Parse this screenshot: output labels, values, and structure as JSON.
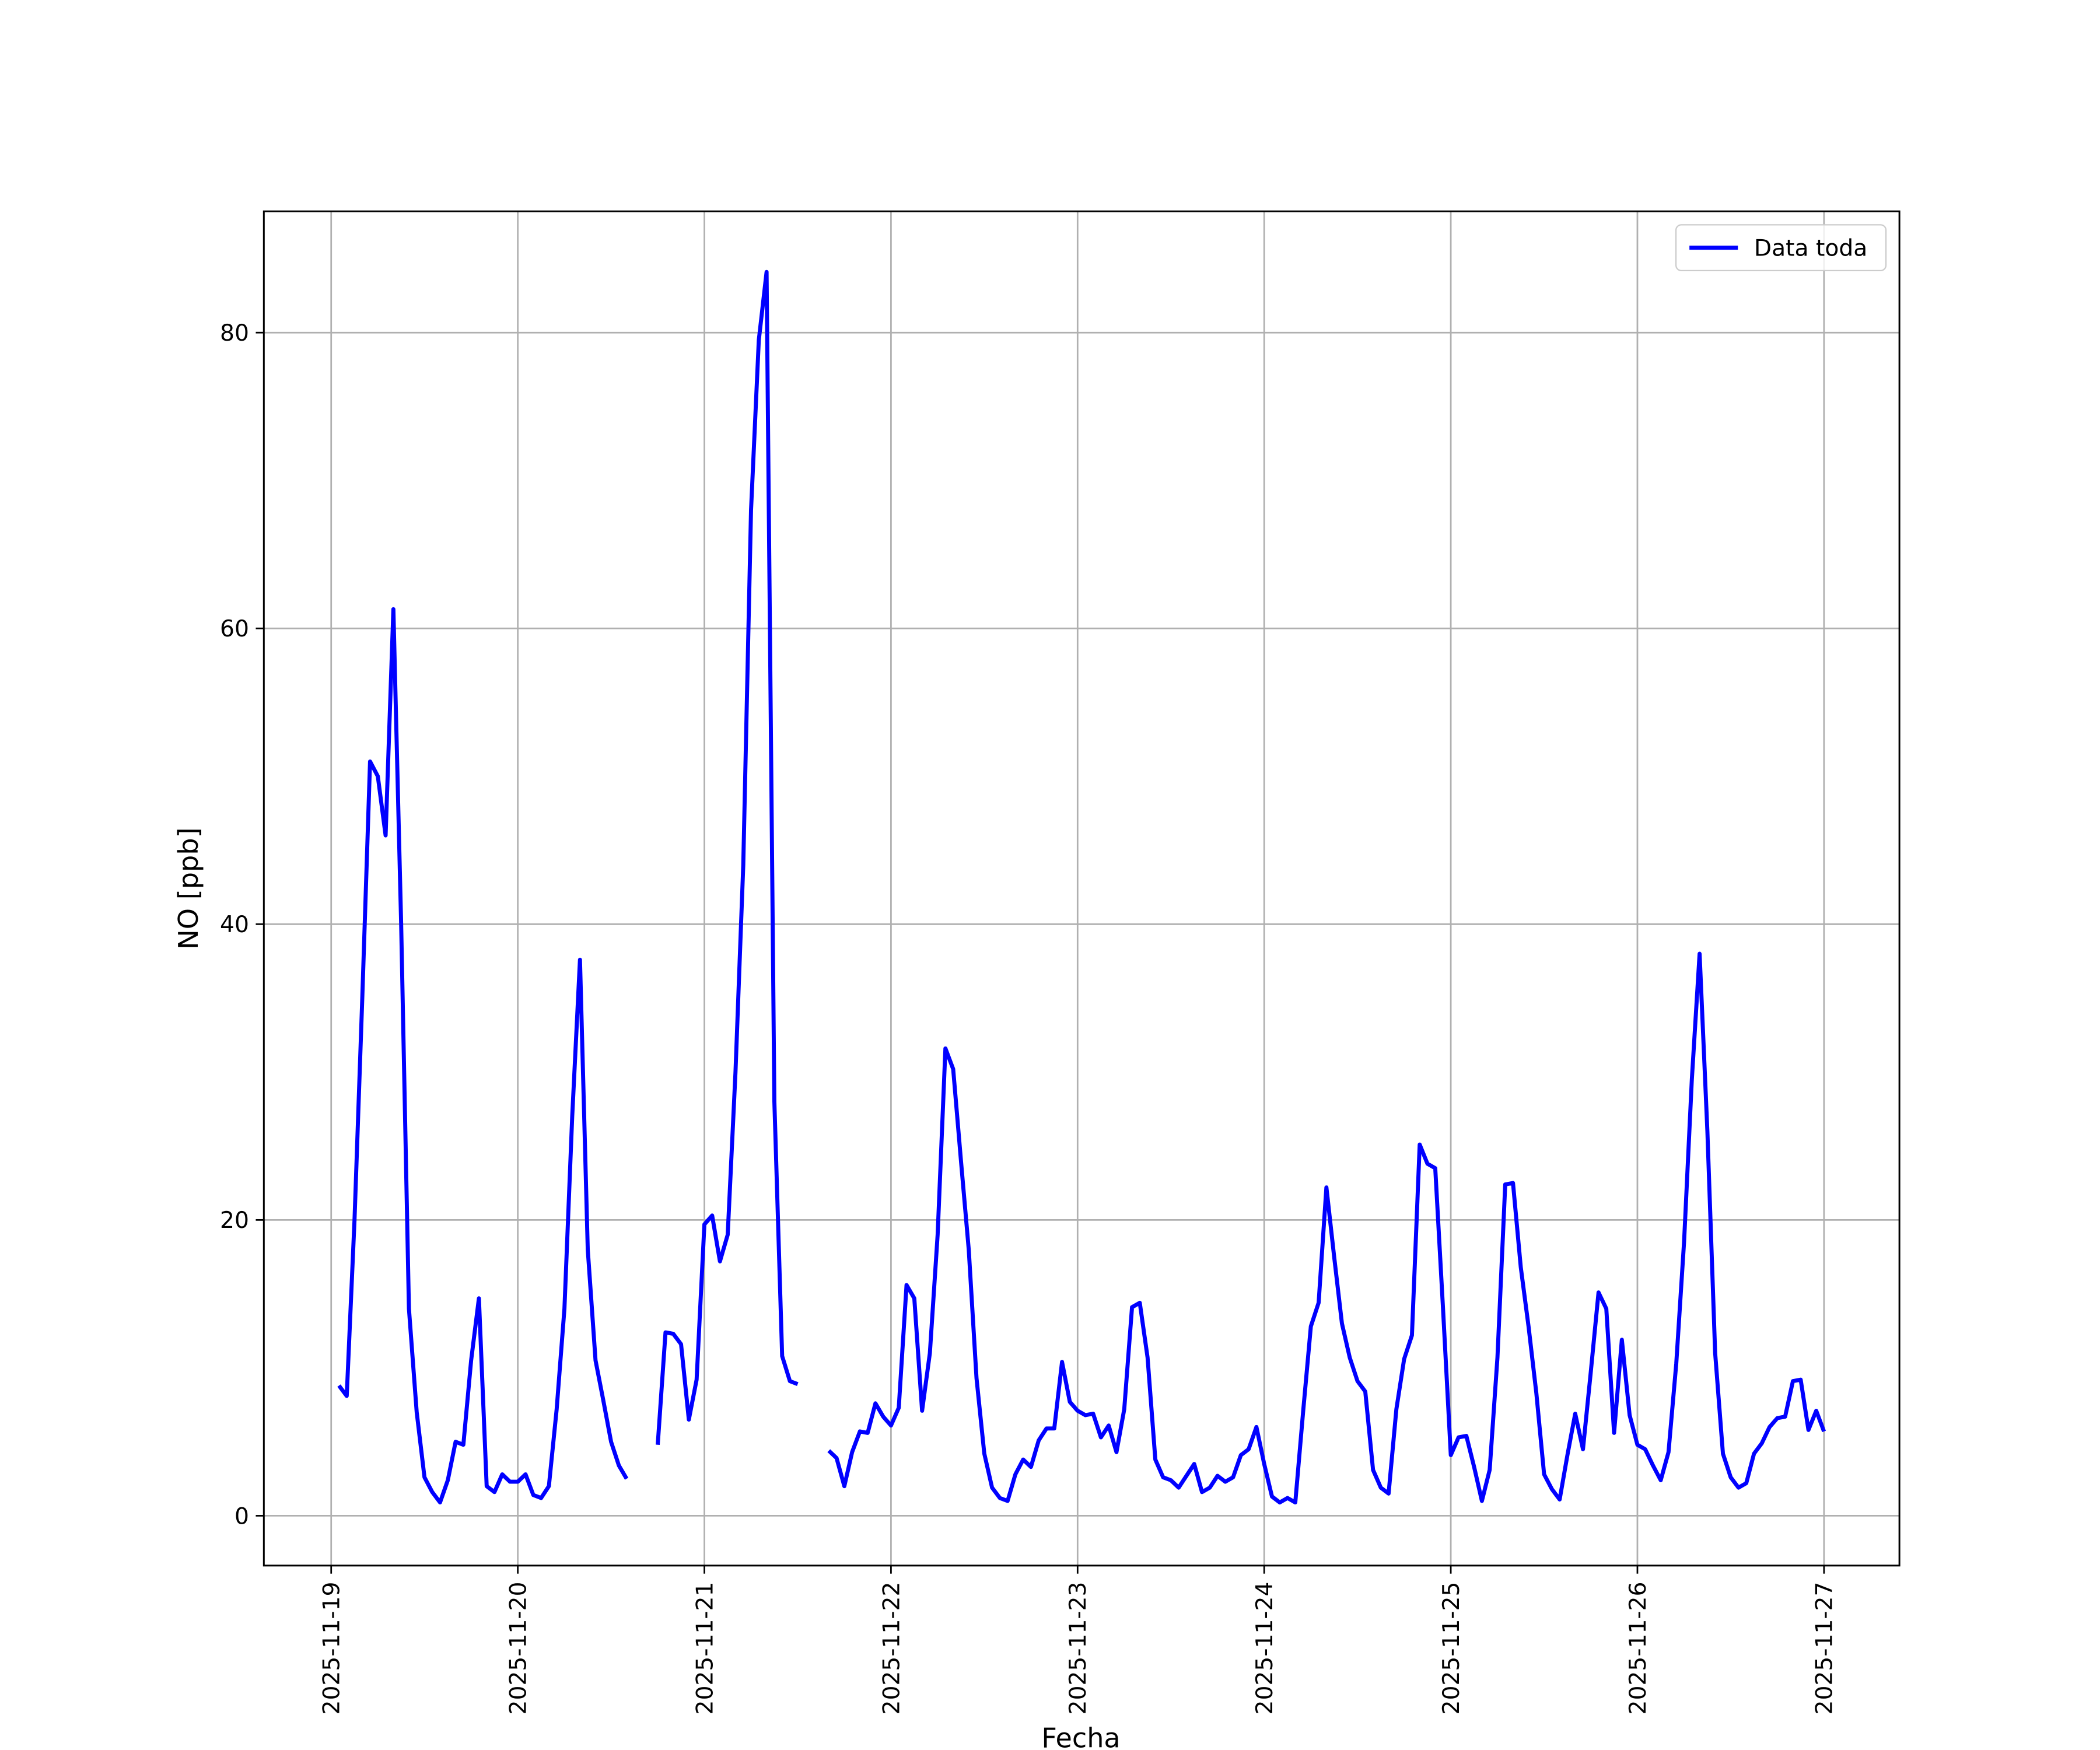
{
  "chart_data": {
    "type": "line",
    "xlabel": "Fecha",
    "ylabel": "NO [ppb]",
    "x": [
      1,
      2,
      3,
      4,
      5,
      6,
      7,
      8,
      9,
      10,
      11,
      12,
      13,
      14,
      15,
      16,
      17,
      18,
      19,
      20,
      21,
      22,
      23,
      24,
      25,
      26,
      27,
      28,
      29,
      30,
      31,
      32,
      33,
      34,
      35,
      36,
      37,
      38,
      39,
      40,
      41,
      42,
      43,
      44,
      45,
      46,
      47,
      48,
      49,
      50,
      51,
      52,
      53,
      54,
      55,
      56,
      57,
      58,
      59,
      60,
      61,
      62,
      63,
      64,
      65,
      66,
      67,
      68,
      69,
      70,
      71,
      72,
      73,
      74,
      75,
      76,
      77,
      78,
      79,
      80,
      81,
      82,
      83,
      84,
      85,
      86,
      87,
      88,
      89,
      90,
      91,
      92,
      93,
      94,
      95,
      96,
      97,
      98,
      99,
      100,
      101,
      102,
      103,
      104,
      105,
      106,
      107,
      108,
      109,
      110,
      111,
      112,
      113,
      114,
      115,
      116,
      117,
      118,
      119,
      120,
      121,
      122,
      123,
      124,
      125,
      126,
      127,
      128,
      129,
      130,
      131,
      132,
      133,
      134,
      135,
      136,
      137,
      138,
      139,
      140,
      141,
      142,
      143,
      144,
      145,
      146,
      147,
      148,
      149,
      150,
      151,
      152,
      153,
      154,
      155,
      156,
      157,
      158,
      159,
      160,
      161,
      162,
      163,
      164,
      165,
      166,
      167,
      168,
      169,
      170,
      171,
      172,
      173,
      174,
      175,
      176,
      177,
      178,
      179,
      180,
      181,
      182,
      183,
      184,
      185,
      186,
      187,
      188,
      189,
      190,
      191,
      192
    ],
    "series": [
      {
        "name": "Data toda",
        "color": "#0000ff",
        "values": [
          8.8,
          8.1,
          20,
          35,
          51,
          50,
          46,
          61.3,
          40,
          14,
          7,
          2.6,
          1.6,
          0.9,
          2.4,
          5,
          4.8,
          10.5,
          14.7,
          2,
          1.6,
          2.8,
          2.3,
          2.3,
          2.8,
          1.4,
          1.2,
          2,
          7.2,
          14,
          27,
          37.6,
          18,
          10.5,
          7.8,
          5,
          3.4,
          2.5,
          null,
          null,
          null,
          4.8,
          12.4,
          12.3,
          11.6,
          6.5,
          9.2,
          19.7,
          20.3,
          17.2,
          19,
          30,
          44,
          68,
          79.5,
          84.1,
          28,
          10.8,
          9.1,
          8.9,
          null,
          null,
          null,
          4.4,
          3.9,
          2,
          4.3,
          5.7,
          5.6,
          7.6,
          6.7,
          6.1,
          7.3,
          15.6,
          14.7,
          7.1,
          11,
          19,
          31.6,
          30.2,
          24,
          18,
          9.3,
          4.2,
          1.9,
          1.2,
          1,
          2.8,
          3.8,
          3.3,
          5.1,
          5.9,
          5.9,
          10.4,
          7.7,
          7.1,
          6.8,
          6.9,
          5.3,
          6.1,
          4.3,
          7.2,
          14.1,
          14.4,
          10.7,
          3.8,
          2.6,
          2.4,
          1.9,
          2.7,
          3.5,
          1.6,
          1.9,
          2.7,
          2.3,
          2.6,
          4.1,
          4.5,
          6,
          3.5,
          1.3,
          0.9,
          1.2,
          0.9,
          7,
          12.8,
          14.4,
          22.2,
          17.5,
          13,
          10.7,
          9.1,
          8.4,
          3.1,
          1.9,
          1.5,
          7.2,
          10.6,
          12.2,
          25.1,
          23.8,
          23.5,
          14,
          4.1,
          5.3,
          5.4,
          3.3,
          1,
          3.1,
          10.7,
          22.4,
          22.5,
          16.8,
          12.8,
          8.3,
          2.8,
          1.8,
          1.1,
          4.1,
          6.9,
          4.5,
          9.7,
          15.1,
          14,
          5.6,
          11.9,
          6.8,
          4.8,
          4.5,
          3.4,
          2.4,
          4.3,
          10.3,
          18.5,
          29.5,
          38,
          26,
          11,
          4.2,
          2.6,
          1.9,
          2.2,
          4.2,
          4.9,
          6,
          6.6,
          6.7,
          9.1,
          9.2,
          5.8,
          7.1,
          5.7
        ]
      }
    ],
    "xlim": [
      -8.66,
      201.7
    ],
    "xticks": [
      {
        "value": 0,
        "label": "2025-11-19"
      },
      {
        "value": 24,
        "label": "2025-11-20"
      },
      {
        "value": 48,
        "label": "2025-11-21"
      },
      {
        "value": 72,
        "label": "2025-11-22"
      },
      {
        "value": 96,
        "label": "2025-11-23"
      },
      {
        "value": 120,
        "label": "2025-11-24"
      },
      {
        "value": 144,
        "label": "2025-11-25"
      },
      {
        "value": 168,
        "label": "2025-11-26"
      },
      {
        "value": 192,
        "label": "2025-11-27"
      }
    ],
    "ylim": [
      -3.37,
      88.2
    ],
    "yticks": [
      0,
      20,
      40,
      60,
      80
    ],
    "grid": true,
    "legend": "upper right"
  }
}
